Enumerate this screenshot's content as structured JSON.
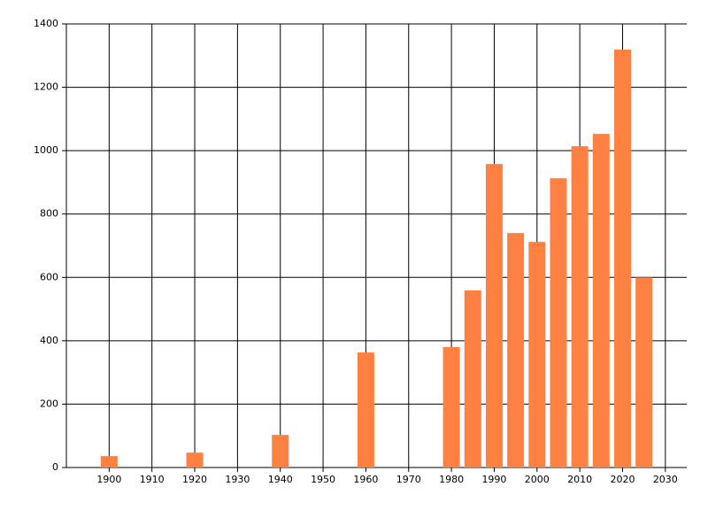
{
  "chart_data": {
    "type": "bar",
    "x": [
      1900,
      1920,
      1940,
      1960,
      1980,
      1985,
      1990,
      1995,
      2000,
      2005,
      2010,
      2015,
      2020,
      2025
    ],
    "values": [
      36,
      47,
      103,
      363,
      380,
      559,
      958,
      740,
      712,
      913,
      1014,
      1053,
      1319,
      600
    ],
    "color": "#ff8040",
    "xlim": [
      1890,
      2035
    ],
    "xticks": [
      1900,
      1910,
      1920,
      1930,
      1940,
      1950,
      1960,
      1970,
      1980,
      1990,
      2000,
      2010,
      2020,
      2030
    ],
    "ylim": [
      0,
      1400
    ],
    "yticks": [
      0,
      200,
      400,
      600,
      800,
      1000,
      1200,
      1400
    ],
    "grid": true
  }
}
